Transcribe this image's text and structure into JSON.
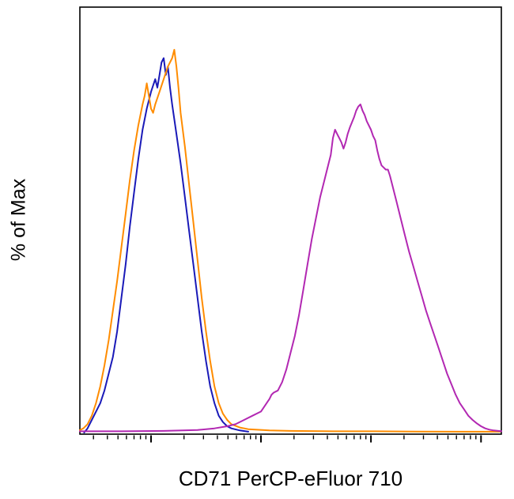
{
  "chart_data": {
    "type": "line",
    "variant": "flow-cytometry-histogram-overlay",
    "title": "",
    "xlabel": "CD71 PerCP-eFluor 710",
    "ylabel": "% of Max",
    "x_scale": "log",
    "x_units": "fraction of axis width (no x tick labels shown)",
    "y_units": "% of max",
    "ylim": [
      0,
      100
    ],
    "grid": false,
    "legend": "none",
    "axis_color": "#000000",
    "background_color": "#ffffff",
    "series": [
      {
        "name": "blue-histogram",
        "color": "#1a1ab8",
        "points": [
          [
            0.012,
            0
          ],
          [
            0.02,
            1
          ],
          [
            0.03,
            3
          ],
          [
            0.05,
            7
          ],
          [
            0.06,
            10
          ],
          [
            0.08,
            18
          ],
          [
            0.09,
            24
          ],
          [
            0.1,
            32
          ],
          [
            0.11,
            40
          ],
          [
            0.12,
            49
          ],
          [
            0.13,
            57
          ],
          [
            0.14,
            65
          ],
          [
            0.15,
            72
          ],
          [
            0.16,
            77
          ],
          [
            0.17,
            81
          ],
          [
            0.18,
            84
          ],
          [
            0.185,
            82
          ],
          [
            0.19,
            85
          ],
          [
            0.195,
            88
          ],
          [
            0.2,
            89
          ],
          [
            0.205,
            85
          ],
          [
            0.21,
            87
          ],
          [
            0.215,
            82
          ],
          [
            0.22,
            78
          ],
          [
            0.23,
            71
          ],
          [
            0.24,
            64
          ],
          [
            0.25,
            56
          ],
          [
            0.26,
            48
          ],
          [
            0.27,
            40
          ],
          [
            0.28,
            32
          ],
          [
            0.29,
            24
          ],
          [
            0.3,
            17
          ],
          [
            0.31,
            11
          ],
          [
            0.32,
            7
          ],
          [
            0.33,
            4
          ],
          [
            0.34,
            2.5
          ],
          [
            0.35,
            1.5
          ],
          [
            0.36,
            1
          ],
          [
            0.38,
            0.5
          ],
          [
            0.4,
            0.2
          ]
        ]
      },
      {
        "name": "orange-histogram",
        "color": "#ff8c00",
        "points": [
          [
            0.0,
            0.5
          ],
          [
            0.01,
            1
          ],
          [
            0.02,
            2
          ],
          [
            0.03,
            4
          ],
          [
            0.04,
            7
          ],
          [
            0.05,
            11
          ],
          [
            0.06,
            16
          ],
          [
            0.07,
            22
          ],
          [
            0.08,
            29
          ],
          [
            0.09,
            36
          ],
          [
            0.1,
            44
          ],
          [
            0.11,
            52
          ],
          [
            0.12,
            60
          ],
          [
            0.13,
            67
          ],
          [
            0.14,
            73
          ],
          [
            0.15,
            78
          ],
          [
            0.155,
            80
          ],
          [
            0.16,
            83
          ],
          [
            0.165,
            80
          ],
          [
            0.17,
            77
          ],
          [
            0.175,
            76
          ],
          [
            0.18,
            78
          ],
          [
            0.19,
            81
          ],
          [
            0.2,
            84
          ],
          [
            0.21,
            87
          ],
          [
            0.22,
            89
          ],
          [
            0.225,
            91
          ],
          [
            0.23,
            87
          ],
          [
            0.235,
            82
          ],
          [
            0.24,
            76
          ],
          [
            0.25,
            68
          ],
          [
            0.26,
            59
          ],
          [
            0.27,
            50
          ],
          [
            0.28,
            41
          ],
          [
            0.29,
            32
          ],
          [
            0.3,
            24
          ],
          [
            0.31,
            17
          ],
          [
            0.32,
            11
          ],
          [
            0.33,
            7
          ],
          [
            0.34,
            4.5
          ],
          [
            0.35,
            3
          ],
          [
            0.36,
            2
          ],
          [
            0.38,
            1.2
          ],
          [
            0.4,
            0.8
          ],
          [
            0.45,
            0.5
          ],
          [
            0.5,
            0.4
          ],
          [
            0.6,
            0.3
          ],
          [
            0.7,
            0.3
          ],
          [
            0.8,
            0.25
          ],
          [
            0.9,
            0.2
          ],
          [
            0.995,
            0.2
          ]
        ]
      },
      {
        "name": "magenta-histogram",
        "color": "#b228b2",
        "points": [
          [
            0.0,
            0.3
          ],
          [
            0.1,
            0.3
          ],
          [
            0.2,
            0.4
          ],
          [
            0.28,
            0.6
          ],
          [
            0.32,
            1
          ],
          [
            0.35,
            1.5
          ],
          [
            0.37,
            2
          ],
          [
            0.39,
            3
          ],
          [
            0.41,
            4
          ],
          [
            0.43,
            5
          ],
          [
            0.44,
            6.5
          ],
          [
            0.45,
            8
          ],
          [
            0.455,
            9
          ],
          [
            0.46,
            9.5
          ],
          [
            0.47,
            10
          ],
          [
            0.48,
            12
          ],
          [
            0.49,
            15
          ],
          [
            0.5,
            19
          ],
          [
            0.51,
            23
          ],
          [
            0.52,
            28
          ],
          [
            0.53,
            34
          ],
          [
            0.54,
            40
          ],
          [
            0.55,
            46
          ],
          [
            0.56,
            51
          ],
          [
            0.57,
            56
          ],
          [
            0.58,
            60
          ],
          [
            0.59,
            64
          ],
          [
            0.595,
            66
          ],
          [
            0.6,
            70
          ],
          [
            0.605,
            72
          ],
          [
            0.61,
            71
          ],
          [
            0.615,
            70
          ],
          [
            0.62,
            69
          ],
          [
            0.625,
            67.5
          ],
          [
            0.63,
            69
          ],
          [
            0.635,
            71
          ],
          [
            0.64,
            72.5
          ],
          [
            0.65,
            75
          ],
          [
            0.655,
            76.5
          ],
          [
            0.66,
            77.5
          ],
          [
            0.665,
            78
          ],
          [
            0.67,
            76.5
          ],
          [
            0.675,
            75.5
          ],
          [
            0.68,
            74
          ],
          [
            0.69,
            72
          ],
          [
            0.695,
            70.5
          ],
          [
            0.7,
            69.5
          ],
          [
            0.705,
            67
          ],
          [
            0.71,
            65
          ],
          [
            0.715,
            63.5
          ],
          [
            0.72,
            63
          ],
          [
            0.725,
            62.5
          ],
          [
            0.73,
            62.5
          ],
          [
            0.735,
            61
          ],
          [
            0.74,
            59
          ],
          [
            0.75,
            55
          ],
          [
            0.76,
            51
          ],
          [
            0.77,
            47
          ],
          [
            0.78,
            43
          ],
          [
            0.79,
            39.5
          ],
          [
            0.8,
            36
          ],
          [
            0.81,
            32.5
          ],
          [
            0.82,
            29
          ],
          [
            0.83,
            26
          ],
          [
            0.84,
            23
          ],
          [
            0.85,
            20
          ],
          [
            0.86,
            17
          ],
          [
            0.87,
            14
          ],
          [
            0.88,
            11.5
          ],
          [
            0.89,
            9
          ],
          [
            0.9,
            7
          ],
          [
            0.91,
            5.5
          ],
          [
            0.92,
            4
          ],
          [
            0.93,
            3
          ],
          [
            0.94,
            2.2
          ],
          [
            0.95,
            1.5
          ],
          [
            0.96,
            1
          ],
          [
            0.97,
            0.7
          ],
          [
            0.98,
            0.5
          ],
          [
            1.0,
            0.3
          ]
        ]
      }
    ],
    "x_axis_ticks": [
      {
        "x": 0.034,
        "major": false
      },
      {
        "x": 0.067,
        "major": false
      },
      {
        "x": 0.092,
        "major": false
      },
      {
        "x": 0.112,
        "major": false
      },
      {
        "x": 0.13,
        "major": false
      },
      {
        "x": 0.145,
        "major": false
      },
      {
        "x": 0.158,
        "major": false
      },
      {
        "x": 0.17,
        "major": true
      },
      {
        "x": 0.248,
        "major": false
      },
      {
        "x": 0.294,
        "major": false
      },
      {
        "x": 0.327,
        "major": false
      },
      {
        "x": 0.352,
        "major": false
      },
      {
        "x": 0.372,
        "major": false
      },
      {
        "x": 0.39,
        "major": false
      },
      {
        "x": 0.405,
        "major": false
      },
      {
        "x": 0.418,
        "major": false
      },
      {
        "x": 0.43,
        "major": true
      },
      {
        "x": 0.508,
        "major": false
      },
      {
        "x": 0.554,
        "major": false
      },
      {
        "x": 0.587,
        "major": false
      },
      {
        "x": 0.612,
        "major": false
      },
      {
        "x": 0.632,
        "major": false
      },
      {
        "x": 0.65,
        "major": false
      },
      {
        "x": 0.665,
        "major": false
      },
      {
        "x": 0.678,
        "major": false
      },
      {
        "x": 0.69,
        "major": true
      },
      {
        "x": 0.768,
        "major": false
      },
      {
        "x": 0.814,
        "major": false
      },
      {
        "x": 0.847,
        "major": false
      },
      {
        "x": 0.872,
        "major": false
      },
      {
        "x": 0.892,
        "major": false
      },
      {
        "x": 0.91,
        "major": false
      },
      {
        "x": 0.925,
        "major": false
      },
      {
        "x": 0.938,
        "major": false
      },
      {
        "x": 0.95,
        "major": true
      }
    ]
  }
}
